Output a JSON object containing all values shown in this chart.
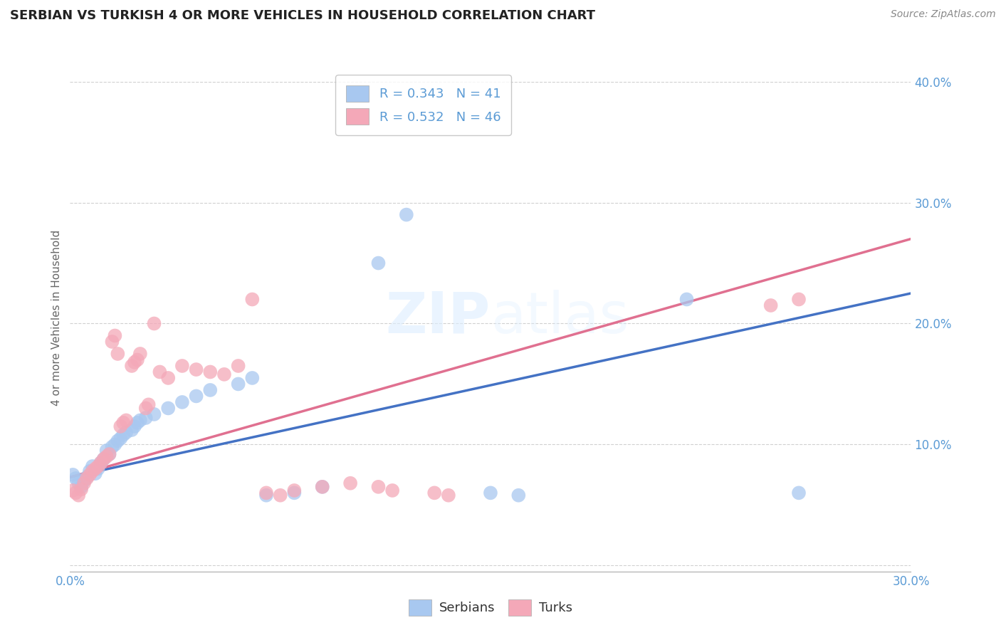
{
  "title": "SERBIAN VS TURKISH 4 OR MORE VEHICLES IN HOUSEHOLD CORRELATION CHART",
  "source": "Source: ZipAtlas.com",
  "ylabel": "4 or more Vehicles in Household",
  "xlim": [
    0.0,
    0.3
  ],
  "ylim": [
    -0.005,
    0.415
  ],
  "serbian_color": "#a8c8f0",
  "turkish_color": "#f4a8b8",
  "serbian_line_color": "#4472c4",
  "turkish_line_color": "#e07090",
  "serbian_R": 0.343,
  "serbian_N": 41,
  "turkish_R": 0.532,
  "turkish_N": 46,
  "tick_color": "#5b9bd5",
  "serbian_scatter": [
    [
      0.001,
      0.075
    ],
    [
      0.002,
      0.072
    ],
    [
      0.003,
      0.068
    ],
    [
      0.004,
      0.065
    ],
    [
      0.005,
      0.07
    ],
    [
      0.006,
      0.073
    ],
    [
      0.007,
      0.078
    ],
    [
      0.008,
      0.082
    ],
    [
      0.009,
      0.076
    ],
    [
      0.01,
      0.08
    ],
    [
      0.011,
      0.085
    ],
    [
      0.012,
      0.088
    ],
    [
      0.013,
      0.095
    ],
    [
      0.014,
      0.092
    ],
    [
      0.015,
      0.098
    ],
    [
      0.016,
      0.1
    ],
    [
      0.017,
      0.103
    ],
    [
      0.018,
      0.105
    ],
    [
      0.019,
      0.108
    ],
    [
      0.02,
      0.11
    ],
    [
      0.022,
      0.112
    ],
    [
      0.023,
      0.115
    ],
    [
      0.024,
      0.118
    ],
    [
      0.025,
      0.12
    ],
    [
      0.027,
      0.122
    ],
    [
      0.03,
      0.125
    ],
    [
      0.035,
      0.13
    ],
    [
      0.04,
      0.135
    ],
    [
      0.045,
      0.14
    ],
    [
      0.05,
      0.145
    ],
    [
      0.06,
      0.15
    ],
    [
      0.065,
      0.155
    ],
    [
      0.07,
      0.058
    ],
    [
      0.08,
      0.06
    ],
    [
      0.09,
      0.065
    ],
    [
      0.11,
      0.25
    ],
    [
      0.12,
      0.29
    ],
    [
      0.15,
      0.06
    ],
    [
      0.16,
      0.058
    ],
    [
      0.22,
      0.22
    ],
    [
      0.26,
      0.06
    ]
  ],
  "turkish_scatter": [
    [
      0.001,
      0.062
    ],
    [
      0.002,
      0.06
    ],
    [
      0.003,
      0.058
    ],
    [
      0.004,
      0.063
    ],
    [
      0.005,
      0.068
    ],
    [
      0.006,
      0.072
    ],
    [
      0.007,
      0.075
    ],
    [
      0.008,
      0.078
    ],
    [
      0.009,
      0.08
    ],
    [
      0.01,
      0.082
    ],
    [
      0.011,
      0.085
    ],
    [
      0.012,
      0.088
    ],
    [
      0.013,
      0.09
    ],
    [
      0.014,
      0.092
    ],
    [
      0.015,
      0.185
    ],
    [
      0.016,
      0.19
    ],
    [
      0.017,
      0.175
    ],
    [
      0.018,
      0.115
    ],
    [
      0.019,
      0.118
    ],
    [
      0.02,
      0.12
    ],
    [
      0.022,
      0.165
    ],
    [
      0.023,
      0.168
    ],
    [
      0.024,
      0.17
    ],
    [
      0.025,
      0.175
    ],
    [
      0.027,
      0.13
    ],
    [
      0.028,
      0.133
    ],
    [
      0.03,
      0.2
    ],
    [
      0.032,
      0.16
    ],
    [
      0.035,
      0.155
    ],
    [
      0.04,
      0.165
    ],
    [
      0.045,
      0.162
    ],
    [
      0.05,
      0.16
    ],
    [
      0.055,
      0.158
    ],
    [
      0.06,
      0.165
    ],
    [
      0.065,
      0.22
    ],
    [
      0.07,
      0.06
    ],
    [
      0.075,
      0.058
    ],
    [
      0.08,
      0.062
    ],
    [
      0.09,
      0.065
    ],
    [
      0.1,
      0.068
    ],
    [
      0.11,
      0.065
    ],
    [
      0.115,
      0.062
    ],
    [
      0.13,
      0.06
    ],
    [
      0.135,
      0.058
    ],
    [
      0.25,
      0.215
    ],
    [
      0.26,
      0.22
    ]
  ],
  "serbian_line": [
    [
      0.0,
      0.073
    ],
    [
      0.3,
      0.225
    ]
  ],
  "turkish_line": [
    [
      0.0,
      0.073
    ],
    [
      0.3,
      0.27
    ]
  ]
}
